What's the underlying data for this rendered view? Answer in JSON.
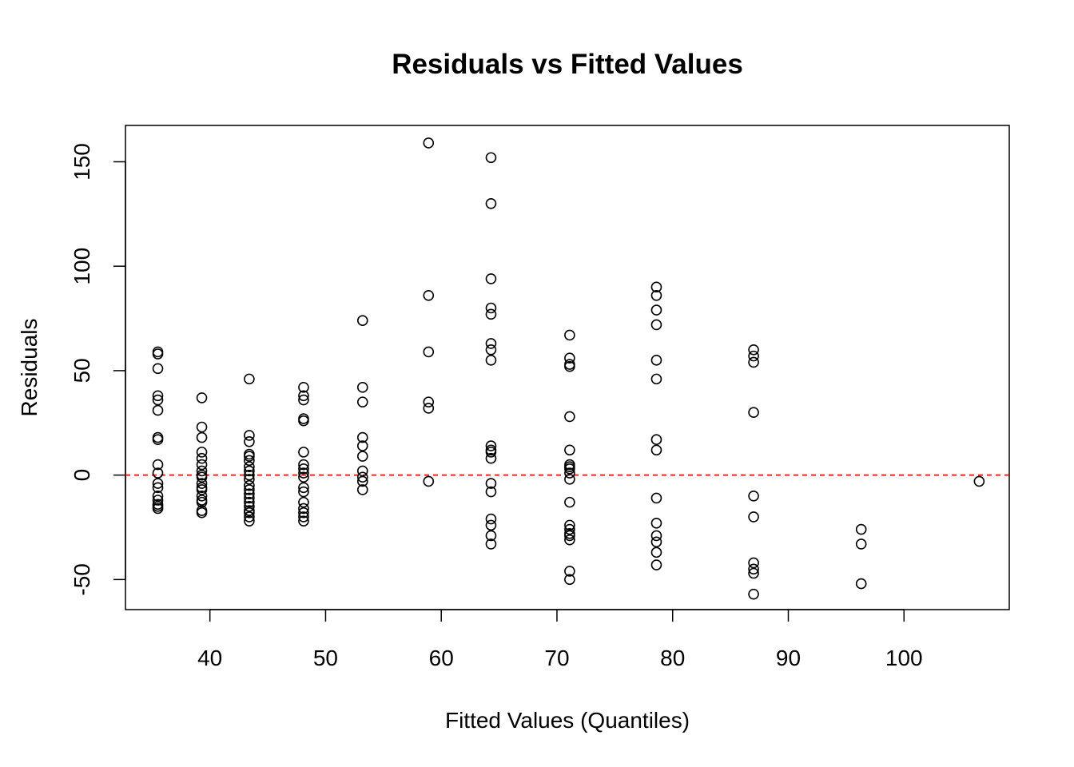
{
  "chart_data": {
    "type": "scatter",
    "title": "Residuals vs Fitted Values",
    "xlabel": "Fitted Values (Quantiles)",
    "ylabel": "Residuals",
    "xlim": [
      32.7,
      109.1
    ],
    "ylim": [
      -64.4,
      167.4
    ],
    "x_ticks": [
      40,
      50,
      60,
      70,
      80,
      90,
      100
    ],
    "y_ticks": [
      -50,
      0,
      50,
      100,
      150
    ],
    "grid": false,
    "legend": "none",
    "reference_line": {
      "y": 0,
      "color": "#ff0000",
      "style": "dashed"
    },
    "marker_color": "#000000",
    "series": [
      {
        "points": [
          [
            35.5,
            59
          ],
          [
            35.5,
            58
          ],
          [
            35.5,
            51
          ],
          [
            35.5,
            38
          ],
          [
            35.5,
            36
          ],
          [
            35.5,
            31
          ],
          [
            35.5,
            18
          ],
          [
            35.5,
            17
          ],
          [
            35.5,
            5
          ],
          [
            35.5,
            1
          ],
          [
            35.5,
            -4
          ],
          [
            35.5,
            -6
          ],
          [
            35.5,
            -10
          ],
          [
            35.5,
            -12
          ],
          [
            35.5,
            -14
          ],
          [
            35.5,
            -15
          ],
          [
            35.5,
            -16
          ],
          [
            39.3,
            37
          ],
          [
            39.3,
            23
          ],
          [
            39.3,
            18
          ],
          [
            39.3,
            11
          ],
          [
            39.3,
            8
          ],
          [
            39.3,
            5
          ],
          [
            39.3,
            2
          ],
          [
            39.3,
            0
          ],
          [
            39.3,
            -1
          ],
          [
            39.3,
            -4
          ],
          [
            39.3,
            -6
          ],
          [
            39.3,
            -7
          ],
          [
            39.3,
            -10
          ],
          [
            39.3,
            -12
          ],
          [
            39.3,
            -13
          ],
          [
            39.3,
            -17
          ],
          [
            39.3,
            -18
          ],
          [
            43.4,
            46
          ],
          [
            43.4,
            19
          ],
          [
            43.4,
            16
          ],
          [
            43.4,
            10
          ],
          [
            43.4,
            9
          ],
          [
            43.4,
            7
          ],
          [
            43.4,
            4
          ],
          [
            43.4,
            2
          ],
          [
            43.4,
            0
          ],
          [
            43.4,
            -2
          ],
          [
            43.4,
            -5
          ],
          [
            43.4,
            -7
          ],
          [
            43.4,
            -9
          ],
          [
            43.4,
            -11
          ],
          [
            43.4,
            -13
          ],
          [
            43.4,
            -15
          ],
          [
            43.4,
            -17
          ],
          [
            43.4,
            -18
          ],
          [
            43.4,
            -20
          ],
          [
            43.4,
            -22
          ],
          [
            48.1,
            42
          ],
          [
            48.1,
            38
          ],
          [
            48.1,
            36
          ],
          [
            48.1,
            27
          ],
          [
            48.1,
            26
          ],
          [
            48.1,
            11
          ],
          [
            48.1,
            5
          ],
          [
            48.1,
            3
          ],
          [
            48.1,
            1
          ],
          [
            48.1,
            -1
          ],
          [
            48.1,
            -6
          ],
          [
            48.1,
            -8
          ],
          [
            48.1,
            -13
          ],
          [
            48.1,
            -16
          ],
          [
            48.1,
            -18
          ],
          [
            48.1,
            -20
          ],
          [
            48.1,
            -22
          ],
          [
            53.2,
            74
          ],
          [
            53.2,
            42
          ],
          [
            53.2,
            35
          ],
          [
            53.2,
            18
          ],
          [
            53.2,
            14
          ],
          [
            53.2,
            9
          ],
          [
            53.2,
            2
          ],
          [
            53.2,
            -1
          ],
          [
            53.2,
            -3
          ],
          [
            53.2,
            -7
          ],
          [
            58.9,
            159
          ],
          [
            58.9,
            86
          ],
          [
            58.9,
            59
          ],
          [
            58.9,
            35
          ],
          [
            58.9,
            32
          ],
          [
            58.9,
            -3
          ],
          [
            64.3,
            152
          ],
          [
            64.3,
            130
          ],
          [
            64.3,
            94
          ],
          [
            64.3,
            80
          ],
          [
            64.3,
            77
          ],
          [
            64.3,
            63
          ],
          [
            64.3,
            60
          ],
          [
            64.3,
            55
          ],
          [
            64.3,
            14
          ],
          [
            64.3,
            12
          ],
          [
            64.3,
            11
          ],
          [
            64.3,
            8
          ],
          [
            64.3,
            -4
          ],
          [
            64.3,
            -8
          ],
          [
            64.3,
            -21
          ],
          [
            64.3,
            -24
          ],
          [
            64.3,
            -29
          ],
          [
            64.3,
            -33
          ],
          [
            71.1,
            67
          ],
          [
            71.1,
            56
          ],
          [
            71.1,
            53
          ],
          [
            71.1,
            52
          ],
          [
            71.1,
            28
          ],
          [
            71.1,
            12
          ],
          [
            71.1,
            5
          ],
          [
            71.1,
            4
          ],
          [
            71.1,
            3
          ],
          [
            71.1,
            1
          ],
          [
            71.1,
            -2
          ],
          [
            71.1,
            -13
          ],
          [
            71.1,
            -24
          ],
          [
            71.1,
            -26
          ],
          [
            71.1,
            -28
          ],
          [
            71.1,
            -29
          ],
          [
            71.1,
            -31
          ],
          [
            71.1,
            -46
          ],
          [
            71.1,
            -50
          ],
          [
            78.6,
            90
          ],
          [
            78.6,
            86
          ],
          [
            78.6,
            79
          ],
          [
            78.6,
            72
          ],
          [
            78.6,
            55
          ],
          [
            78.6,
            46
          ],
          [
            78.6,
            17
          ],
          [
            78.6,
            12
          ],
          [
            78.6,
            -11
          ],
          [
            78.6,
            -23
          ],
          [
            78.6,
            -29
          ],
          [
            78.6,
            -32
          ],
          [
            78.6,
            -37
          ],
          [
            78.6,
            -43
          ],
          [
            87.0,
            60
          ],
          [
            87.0,
            57
          ],
          [
            87.0,
            54
          ],
          [
            87.0,
            30
          ],
          [
            87.0,
            -10
          ],
          [
            87.0,
            -20
          ],
          [
            87.0,
            -42
          ],
          [
            87.0,
            -45
          ],
          [
            87.0,
            -47
          ],
          [
            87.0,
            -57
          ],
          [
            96.3,
            -26
          ],
          [
            96.3,
            -33
          ],
          [
            96.3,
            -52
          ],
          [
            106.5,
            -3
          ]
        ]
      }
    ]
  }
}
